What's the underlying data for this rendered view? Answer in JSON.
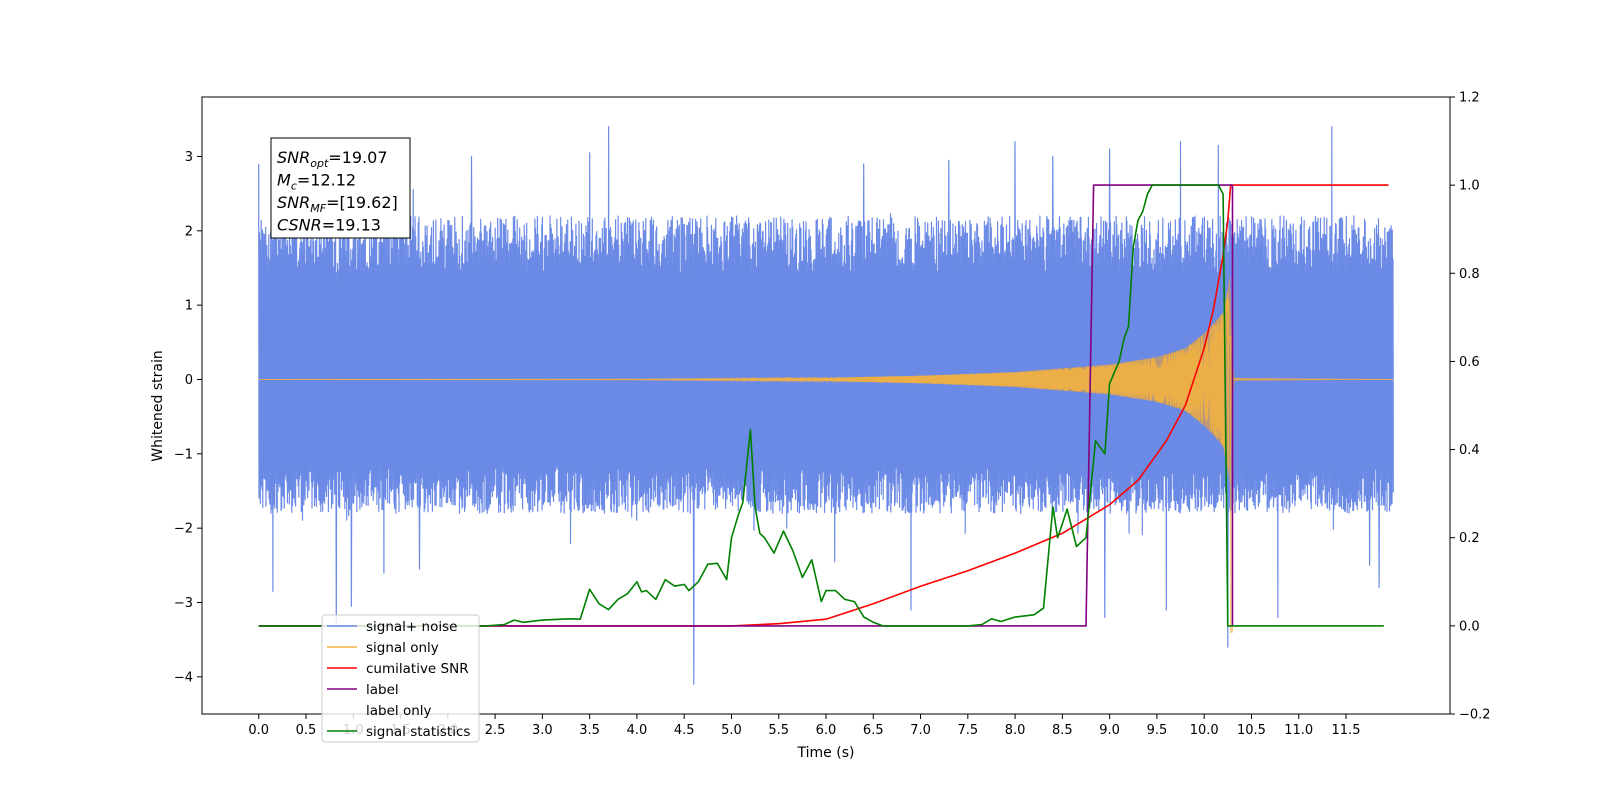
{
  "chart_data": {
    "type": "line",
    "xlabel": "Time (s)",
    "ylabel_left": "Whitened strain",
    "xlim": [
      -0.6,
      12.6
    ],
    "ylim_left": [
      -4.5,
      3.8
    ],
    "ylim_right": [
      -0.2,
      1.2
    ],
    "x_ticks": [
      0.0,
      0.5,
      1.0,
      1.5,
      2.0,
      2.5,
      3.0,
      3.5,
      4.0,
      4.5,
      5.0,
      5.5,
      6.0,
      6.5,
      7.0,
      7.5,
      8.0,
      8.5,
      9.0,
      9.5,
      10.0,
      10.5,
      11.0,
      11.5
    ],
    "x_tick_labels": [
      "0.0",
      "0.5",
      "1.0",
      "1.5",
      "2.0",
      "2.5",
      "3.0",
      "3.5",
      "4.0",
      "4.5",
      "5.0",
      "5.5",
      "6.0",
      "6.5",
      "7.0",
      "7.5",
      "8.0",
      "8.5",
      "9.0",
      "9.5",
      "10.0",
      "10.5",
      "11.0",
      "11.5"
    ],
    "y_left_ticks": [
      -4,
      -3,
      -2,
      -1,
      0,
      1,
      2,
      3
    ],
    "y_left_tick_labels": [
      "−4",
      "−3",
      "−2",
      "−1",
      "0",
      "1",
      "2",
      "3"
    ],
    "y_right_ticks": [
      -0.2,
      0.0,
      0.2,
      0.4,
      0.6,
      0.8,
      1.0,
      1.2
    ],
    "y_right_tick_labels": [
      "−0.2",
      "0.0",
      "0.2",
      "0.4",
      "0.6",
      "0.8",
      "1.0",
      "1.2"
    ],
    "grid": false,
    "legend_position": "lower-left",
    "colors": {
      "signal_noise": "#6b8ae6",
      "signal_only": "#f5b340",
      "signal_fill": "#c49a6c",
      "cumulative_snr": "#ff0000",
      "label": "#800080",
      "signal_statistics": "#008000"
    },
    "annotation": {
      "lines": [
        {
          "main": "SNR",
          "sub": "opt",
          "rest": "=19.07"
        },
        {
          "main": "M",
          "sub": "c",
          "rest": "=12.12"
        },
        {
          "main": "SNR",
          "sub": "MF",
          "rest": "=[19.62]"
        },
        {
          "main": "CSNR",
          "sub": "",
          "rest": "=19.13"
        }
      ]
    },
    "series": [
      {
        "name": "signal+ noise",
        "axis": "left",
        "style": "noise",
        "x_range": [
          0.0,
          12.0
        ],
        "typical_band": [
          -1.8,
          2.2
        ],
        "max": 3.4,
        "min": -4.1,
        "spikes": [
          {
            "x": 0.0,
            "y": 2.9
          },
          {
            "x": 0.15,
            "y": -2.85
          },
          {
            "x": 0.82,
            "y": -3.3
          },
          {
            "x": 0.98,
            "y": -3.05
          },
          {
            "x": 1.7,
            "y": -2.55
          },
          {
            "x": 2.25,
            "y": 3.0
          },
          {
            "x": 3.5,
            "y": 3.05
          },
          {
            "x": 3.7,
            "y": 3.45
          },
          {
            "x": 4.6,
            "y": -4.1
          },
          {
            "x": 6.4,
            "y": 2.9
          },
          {
            "x": 6.9,
            "y": -3.1
          },
          {
            "x": 7.3,
            "y": 2.95
          },
          {
            "x": 8.0,
            "y": 3.2
          },
          {
            "x": 8.4,
            "y": 3.0
          },
          {
            "x": 8.95,
            "y": -3.2
          },
          {
            "x": 9.0,
            "y": 3.1
          },
          {
            "x": 9.6,
            "y": -3.1
          },
          {
            "x": 9.75,
            "y": 3.2
          },
          {
            "x": 10.15,
            "y": 3.15
          },
          {
            "x": 10.25,
            "y": -3.6
          },
          {
            "x": 10.78,
            "y": -3.2
          },
          {
            "x": 11.35,
            "y": 3.4
          },
          {
            "x": 11.75,
            "y": -2.5
          },
          {
            "x": 11.85,
            "y": -2.8
          }
        ]
      },
      {
        "name": "signal only",
        "axis": "left",
        "style": "chirp",
        "x_range": [
          0.0,
          12.0
        ],
        "merger_time": 10.28,
        "envelope": [
          {
            "x": 0.0,
            "y": 0.0
          },
          {
            "x": 4.0,
            "y": 0.005
          },
          {
            "x": 6.0,
            "y": 0.02
          },
          {
            "x": 7.0,
            "y": 0.05
          },
          {
            "x": 8.0,
            "y": 0.1
          },
          {
            "x": 8.5,
            "y": 0.15
          },
          {
            "x": 9.0,
            "y": 0.2
          },
          {
            "x": 9.5,
            "y": 0.3
          },
          {
            "x": 9.8,
            "y": 0.42
          },
          {
            "x": 10.0,
            "y": 0.62
          },
          {
            "x": 10.1,
            "y": 0.75
          },
          {
            "x": 10.2,
            "y": 0.9
          },
          {
            "x": 10.25,
            "y": 1.2
          },
          {
            "x": 10.28,
            "y": 1.5
          },
          {
            "x": 10.3,
            "y": 0.02
          },
          {
            "x": 12.0,
            "y": 0.0
          }
        ],
        "min_excursion": -3.4
      },
      {
        "name": "cumilative SNR",
        "axis": "right",
        "x": [
          0.0,
          5.0,
          5.5,
          6.0,
          6.5,
          7.0,
          7.5,
          8.0,
          8.5,
          9.0,
          9.3,
          9.6,
          9.8,
          10.0,
          10.1,
          10.2,
          10.25,
          10.28,
          10.3,
          11.95
        ],
        "y": [
          0.0,
          0.0,
          0.005,
          0.015,
          0.05,
          0.09,
          0.125,
          0.165,
          0.21,
          0.275,
          0.33,
          0.42,
          0.5,
          0.63,
          0.72,
          0.84,
          0.92,
          1.0,
          1.0,
          1.0
        ]
      },
      {
        "name": "label",
        "axis": "right",
        "x": [
          0.0,
          8.75,
          8.83,
          10.3,
          10.3
        ],
        "y": [
          0.0,
          0.0,
          1.0,
          1.0,
          0.0
        ]
      },
      {
        "name": "label only",
        "axis": "right",
        "x": [],
        "y": []
      },
      {
        "name": "signal statistics",
        "axis": "right",
        "x": [
          0.0,
          2.4,
          2.6,
          2.7,
          2.8,
          3.0,
          3.2,
          3.3,
          3.4,
          3.5,
          3.6,
          3.7,
          3.8,
          3.9,
          4.0,
          4.05,
          4.1,
          4.2,
          4.3,
          4.4,
          4.5,
          4.55,
          4.65,
          4.75,
          4.85,
          4.95,
          5.0,
          5.07,
          5.12,
          5.2,
          5.25,
          5.3,
          5.35,
          5.45,
          5.55,
          5.65,
          5.75,
          5.85,
          5.95,
          6.0,
          6.1,
          6.2,
          6.3,
          6.4,
          6.5,
          6.6,
          7.0,
          7.5,
          7.65,
          7.75,
          7.85,
          8.0,
          8.2,
          8.3,
          8.4,
          8.45,
          8.5,
          8.55,
          8.65,
          8.75,
          8.85,
          8.95,
          9.0,
          9.1,
          9.15,
          9.2,
          9.25,
          9.3,
          9.35,
          9.4,
          9.45,
          9.5,
          9.55,
          9.6,
          9.7,
          10.0,
          10.15,
          10.2,
          10.25,
          10.3,
          11.9
        ],
        "y": [
          0.0,
          0.0,
          0.003,
          0.013,
          0.008,
          0.013,
          0.015,
          0.016,
          0.015,
          0.083,
          0.05,
          0.037,
          0.06,
          0.073,
          0.1,
          0.077,
          0.08,
          0.06,
          0.105,
          0.09,
          0.094,
          0.08,
          0.1,
          0.14,
          0.142,
          0.105,
          0.2,
          0.25,
          0.28,
          0.445,
          0.27,
          0.21,
          0.2,
          0.165,
          0.215,
          0.17,
          0.11,
          0.15,
          0.055,
          0.08,
          0.08,
          0.06,
          0.055,
          0.02,
          0.008,
          0.0,
          0.0,
          0.0,
          0.003,
          0.016,
          0.01,
          0.02,
          0.025,
          0.04,
          0.27,
          0.2,
          0.232,
          0.265,
          0.18,
          0.2,
          0.42,
          0.39,
          0.55,
          0.6,
          0.65,
          0.68,
          0.86,
          0.92,
          0.94,
          0.98,
          1.0,
          1.0,
          1.0,
          1.0,
          1.0,
          1.0,
          1.0,
          0.98,
          0.0,
          0.0,
          0.0
        ]
      }
    ],
    "legend": [
      {
        "label": "signal+ noise",
        "color": "#6b8ae6"
      },
      {
        "label": "signal only",
        "color": "#f5b340"
      },
      {
        "label": "cumilative SNR",
        "color": "#ff0000"
      },
      {
        "label": "label",
        "color": "#800080"
      },
      {
        "label": "label only",
        "color": "#4a4a4a"
      },
      {
        "label": "signal statistics",
        "color": "#008000"
      }
    ]
  }
}
